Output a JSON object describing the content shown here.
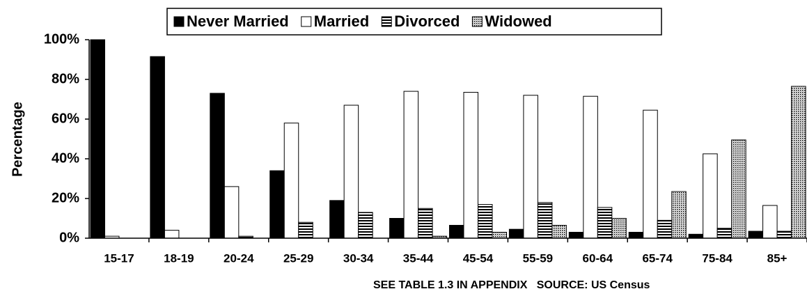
{
  "chart_data": {
    "type": "bar",
    "y_label": "Percentage",
    "annotation": "SEE TABLE 1.3 IN APPENDIX   SOURCE: US Census",
    "categories": [
      "15-17",
      "18-19",
      "20-24",
      "25-29",
      "30-34",
      "35-44",
      "45-54",
      "55-59",
      "60-64",
      "65-74",
      "75-84",
      "85+"
    ],
    "series": [
      {
        "name": "Never Married",
        "color": "#000000",
        "pattern": "solid",
        "values": [
          100,
          91.5,
          73,
          34,
          19,
          10,
          6.5,
          4.5,
          3,
          3,
          2,
          3.5
        ]
      },
      {
        "name": "Married",
        "color": "#ffffff",
        "pattern": "solid",
        "values": [
          1,
          4,
          26,
          58,
          67,
          74,
          73.5,
          72,
          71.5,
          64.5,
          42.5,
          16.5
        ]
      },
      {
        "name": "Divorced",
        "color": "#000000",
        "pattern": "horizontal-lines",
        "values": [
          0,
          0,
          1,
          8,
          13,
          15,
          17,
          18,
          15.5,
          9,
          5,
          3.5
        ]
      },
      {
        "name": "Widowed",
        "color": "#000000",
        "pattern": "dots",
        "values": [
          0,
          0,
          0,
          0,
          0,
          1,
          3,
          6.5,
          10,
          23.5,
          49.5,
          76.5
        ]
      }
    ],
    "ylim": [
      0,
      100
    ],
    "yticks": [
      {
        "value": 0,
        "label": "0%"
      },
      {
        "value": 20,
        "label": "20%"
      },
      {
        "value": 40,
        "label": "40%"
      },
      {
        "value": 60,
        "label": "60%"
      },
      {
        "value": 80,
        "label": "80%"
      },
      {
        "value": 100,
        "label": "100%"
      }
    ],
    "legend": "top"
  }
}
